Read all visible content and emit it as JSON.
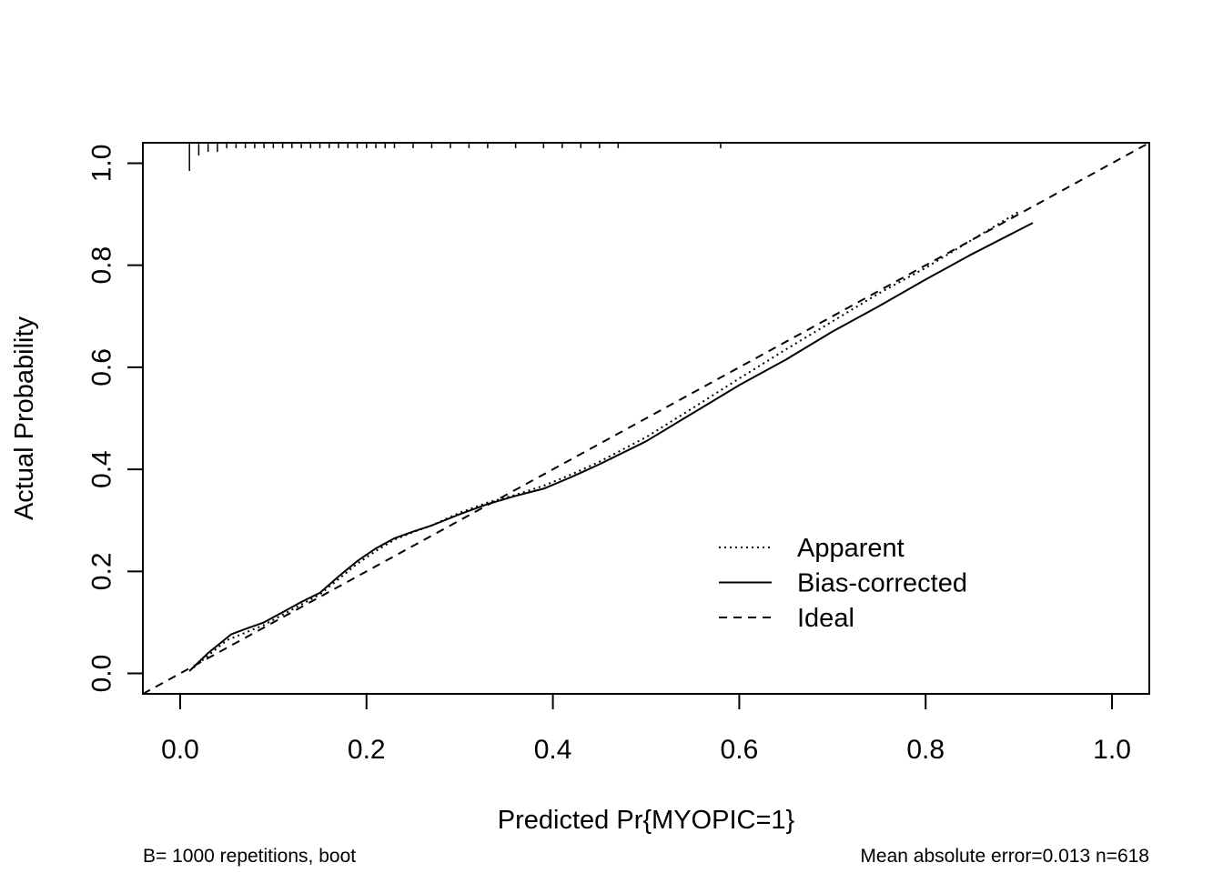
{
  "chart_data": {
    "type": "line",
    "title": "",
    "xlabel": "Predicted Pr{MYOPIC=1}",
    "ylabel": "Actual Probability",
    "xlim": [
      -0.04,
      1.04
    ],
    "ylim": [
      -0.04,
      1.04
    ],
    "x_ticks": [
      "0.0",
      "0.2",
      "0.4",
      "0.6",
      "0.8",
      "1.0"
    ],
    "y_ticks": [
      "0.0",
      "0.2",
      "0.4",
      "0.6",
      "0.8",
      "1.0"
    ],
    "legend_position": "bottom-right",
    "grid": false,
    "series": [
      {
        "name": "Apparent",
        "style": "dotted",
        "x": [
          0.01,
          0.03,
          0.05,
          0.07,
          0.09,
          0.11,
          0.13,
          0.15,
          0.17,
          0.19,
          0.21,
          0.23,
          0.25,
          0.27,
          0.3,
          0.33,
          0.36,
          0.39,
          0.42,
          0.45,
          0.5,
          0.55,
          0.6,
          0.65,
          0.7,
          0.75,
          0.8,
          0.85,
          0.9
        ],
        "y": [
          0.005,
          0.035,
          0.065,
          0.08,
          0.095,
          0.115,
          0.135,
          0.155,
          0.185,
          0.215,
          0.24,
          0.262,
          0.277,
          0.29,
          0.315,
          0.335,
          0.35,
          0.368,
          0.39,
          0.415,
          0.463,
          0.52,
          0.578,
          0.635,
          0.69,
          0.745,
          0.795,
          0.85,
          0.905
        ]
      },
      {
        "name": "Bias-corrected",
        "style": "solid",
        "x": [
          0.01,
          0.03,
          0.055,
          0.07,
          0.09,
          0.11,
          0.13,
          0.15,
          0.17,
          0.19,
          0.21,
          0.23,
          0.25,
          0.27,
          0.3,
          0.33,
          0.36,
          0.39,
          0.42,
          0.45,
          0.5,
          0.55,
          0.6,
          0.65,
          0.7,
          0.75,
          0.8,
          0.85,
          0.915
        ],
        "y": [
          0.005,
          0.04,
          0.077,
          0.087,
          0.1,
          0.12,
          0.14,
          0.158,
          0.19,
          0.22,
          0.245,
          0.265,
          0.278,
          0.29,
          0.312,
          0.332,
          0.348,
          0.362,
          0.385,
          0.41,
          0.455,
          0.51,
          0.565,
          0.615,
          0.67,
          0.72,
          0.772,
          0.822,
          0.883
        ]
      },
      {
        "name": "Ideal",
        "style": "dashed",
        "x": [
          -0.04,
          1.04
        ],
        "y": [
          -0.04,
          1.04
        ]
      }
    ],
    "rug_x": [
      0.01,
      0.02,
      0.03,
      0.04,
      0.05,
      0.06,
      0.07,
      0.08,
      0.09,
      0.1,
      0.11,
      0.12,
      0.13,
      0.14,
      0.15,
      0.16,
      0.17,
      0.18,
      0.19,
      0.2,
      0.21,
      0.22,
      0.23,
      0.25,
      0.27,
      0.29,
      0.31,
      0.33,
      0.36,
      0.39,
      0.41,
      0.43,
      0.45,
      0.47,
      0.58
    ],
    "footnote_left": "B= 1000 repetitions, boot",
    "footnote_right": "Mean absolute error=0.013 n=618"
  }
}
